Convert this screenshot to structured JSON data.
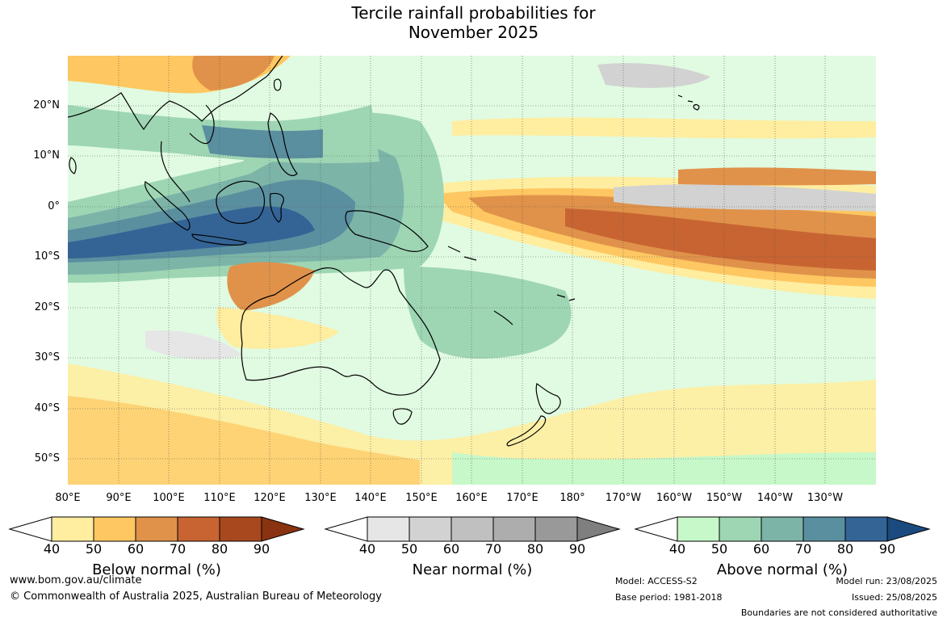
{
  "title": {
    "line1": "Tercile rainfall probabilities for",
    "line2": "November 2025"
  },
  "map": {
    "lat_labels": [
      "20°N",
      "10°N",
      "0°",
      "10°S",
      "20°S",
      "30°S",
      "40°S",
      "50°S"
    ],
    "lon_labels": [
      "80°E",
      "90°E",
      "100°E",
      "110°E",
      "120°E",
      "130°E",
      "140°E",
      "150°E",
      "160°E",
      "170°E",
      "180°",
      "170°W",
      "160°W",
      "150°W",
      "140°W",
      "130°W"
    ],
    "colors": {
      "below": [
        "#ffeda0",
        "#fec761",
        "#e0924a",
        "#c86432",
        "#a8481f",
        "#8a3311"
      ],
      "near": [
        "#e6e6e6",
        "#d2d2d2",
        "#c0c0c0",
        "#adadad",
        "#999999",
        "#7f7f7f"
      ],
      "above": [
        "#c7f8c9",
        "#9ed6b4",
        "#7cb4a8",
        "#5a8fa0",
        "#346496",
        "#1b4a7e"
      ]
    }
  },
  "legends": [
    {
      "id": "below",
      "title": "Below normal (%)",
      "ticks": [
        "40",
        "50",
        "60",
        "70",
        "80",
        "90"
      ]
    },
    {
      "id": "near",
      "title": "Near normal (%)",
      "ticks": [
        "40",
        "50",
        "60",
        "70",
        "80",
        "90"
      ]
    },
    {
      "id": "above",
      "title": "Above normal (%)",
      "ticks": [
        "40",
        "50",
        "60",
        "70",
        "80",
        "90"
      ]
    }
  ],
  "footer": {
    "website": "www.bom.gov.au/climate",
    "copyright": "© Commonwealth of Australia 2025, Australian Bureau of Meteorology",
    "model": "Model: ACCESS-S2",
    "base_period": "Base period: 1981-2018",
    "model_run": "Model run: 23/08/2025",
    "issued": "Issued: 25/08/2025",
    "disclaimer": "Boundaries are not considered authoritative"
  }
}
